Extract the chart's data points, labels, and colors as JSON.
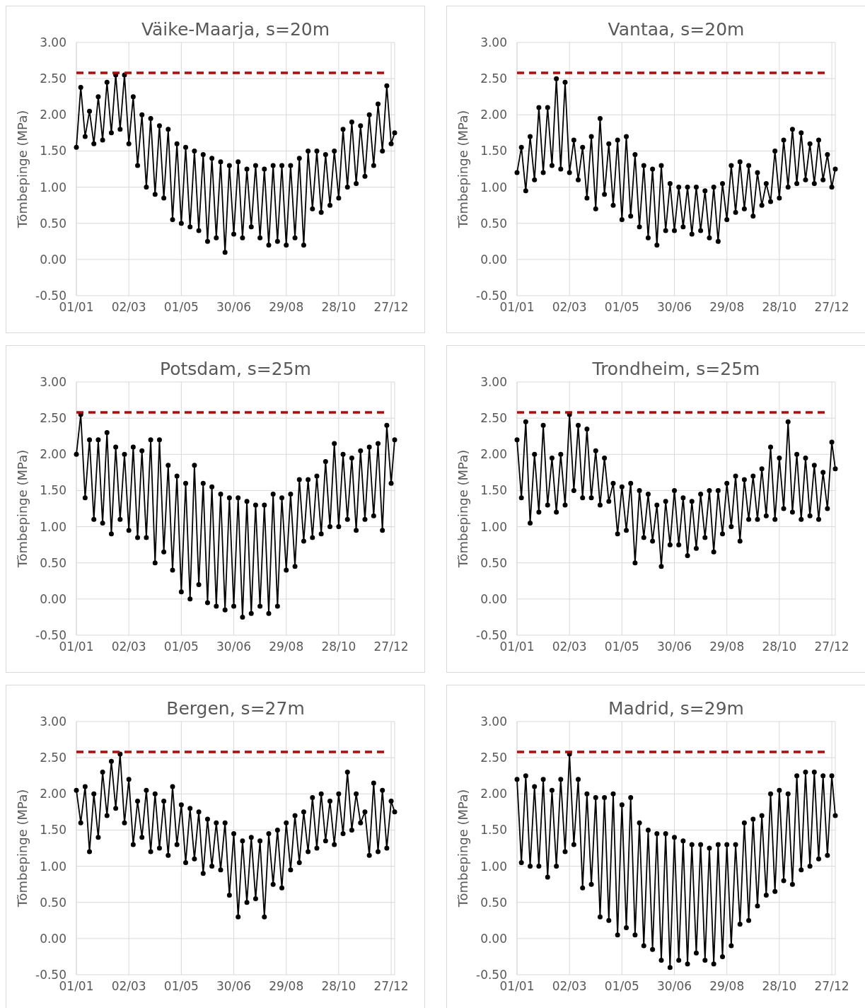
{
  "chart_data": [
    {
      "type": "line",
      "title": "Väike-Maarja, s=20m",
      "ylabel": "Tõmbepinge (MPa)",
      "grid": true,
      "marker": "circle",
      "line_style": "solid",
      "x": [
        "--01-01",
        "--01-06",
        "--01-11",
        "--01-16",
        "--01-21",
        "--01-26",
        "--01-31",
        "--02-05",
        "--02-10",
        "--02-15",
        "--02-20",
        "--02-25",
        "--03-02",
        "--03-07",
        "--03-12",
        "--03-17",
        "--03-22",
        "--03-27",
        "--04-01",
        "--04-06",
        "--04-11",
        "--04-16",
        "--04-21",
        "--04-26",
        "--05-01",
        "--05-06",
        "--05-11",
        "--05-16",
        "--05-21",
        "--05-26",
        "--05-31",
        "--06-05",
        "--06-10",
        "--06-15",
        "--06-20",
        "--06-25",
        "--06-30",
        "--07-05",
        "--07-10",
        "--07-15",
        "--07-20",
        "--07-25",
        "--07-30",
        "--08-04",
        "--08-09",
        "--08-14",
        "--08-19",
        "--08-24",
        "--08-29",
        "--09-03",
        "--09-08",
        "--09-13",
        "--09-18",
        "--09-23",
        "--09-28",
        "--10-03",
        "--10-08",
        "--10-13",
        "--10-18",
        "--10-23",
        "--10-28",
        "--11-02",
        "--11-07",
        "--11-12",
        "--11-17",
        "--11-22",
        "--11-27",
        "--12-02",
        "--12-07",
        "--12-12",
        "--12-17",
        "--12-22",
        "--12-27",
        "--12-31"
      ],
      "series": [
        {
          "color": "#000000",
          "values": [
            1.55,
            2.38,
            1.7,
            2.05,
            1.6,
            2.25,
            1.65,
            2.45,
            1.75,
            2.55,
            1.8,
            2.55,
            1.6,
            2.25,
            1.3,
            2.0,
            1.0,
            1.95,
            0.9,
            1.85,
            0.85,
            1.8,
            0.55,
            1.6,
            0.5,
            1.55,
            0.45,
            1.5,
            0.4,
            1.45,
            0.25,
            1.4,
            0.3,
            1.35,
            0.1,
            1.3,
            0.35,
            1.35,
            0.3,
            1.25,
            0.45,
            1.3,
            0.3,
            1.25,
            0.2,
            1.3,
            0.25,
            1.3,
            0.2,
            1.3,
            0.3,
            1.4,
            0.2,
            1.5,
            0.7,
            1.5,
            0.65,
            1.45,
            0.75,
            1.5,
            0.85,
            1.8,
            1.0,
            1.9,
            1.05,
            1.85,
            1.15,
            2.0,
            1.3,
            2.15,
            1.5,
            2.4,
            1.6,
            1.75
          ]
        }
      ],
      "xlim": [
        "--01-01",
        "--12-31"
      ],
      "xticks": [
        {
          "value": "--01-01",
          "label": "01/01"
        },
        {
          "value": "--03-02",
          "label": "02/03"
        },
        {
          "value": "--05-01",
          "label": "01/05"
        },
        {
          "value": "--06-30",
          "label": "30/06"
        },
        {
          "value": "--08-29",
          "label": "29/08"
        },
        {
          "value": "--10-28",
          "label": "28/10"
        },
        {
          "value": "--12-27",
          "label": "27/12"
        }
      ],
      "ylim": [
        -0.5,
        3
      ],
      "yticks": [
        {
          "value": -0.5,
          "label": "-0.50"
        },
        {
          "value": 0,
          "label": "0.00"
        },
        {
          "value": 0.5,
          "label": "0.50"
        },
        {
          "value": 1,
          "label": "1.00"
        },
        {
          "value": 1.5,
          "label": "1.50"
        },
        {
          "value": 2,
          "label": "2.00"
        },
        {
          "value": 2.5,
          "label": "2.50"
        },
        {
          "value": 3,
          "label": "3.00"
        }
      ],
      "ref_lines": [
        {
          "axis": "y",
          "value": 2.58,
          "color": "#c00000",
          "line_style": "dashed"
        }
      ]
    },
    {
      "type": "line",
      "title": "Vantaa, s=20m",
      "ylabel": "Tõmbepinge (MPa)",
      "grid": true,
      "marker": "circle",
      "line_style": "solid",
      "x": [
        "--01-01",
        "--01-06",
        "--01-11",
        "--01-16",
        "--01-21",
        "--01-26",
        "--01-31",
        "--02-05",
        "--02-10",
        "--02-15",
        "--02-20",
        "--02-25",
        "--03-02",
        "--03-07",
        "--03-12",
        "--03-17",
        "--03-22",
        "--03-27",
        "--04-01",
        "--04-06",
        "--04-11",
        "--04-16",
        "--04-21",
        "--04-26",
        "--05-01",
        "--05-06",
        "--05-11",
        "--05-16",
        "--05-21",
        "--05-26",
        "--05-31",
        "--06-05",
        "--06-10",
        "--06-15",
        "--06-20",
        "--06-25",
        "--06-30",
        "--07-05",
        "--07-10",
        "--07-15",
        "--07-20",
        "--07-25",
        "--07-30",
        "--08-04",
        "--08-09",
        "--08-14",
        "--08-19",
        "--08-24",
        "--08-29",
        "--09-03",
        "--09-08",
        "--09-13",
        "--09-18",
        "--09-23",
        "--09-28",
        "--10-03",
        "--10-08",
        "--10-13",
        "--10-18",
        "--10-23",
        "--10-28",
        "--11-02",
        "--11-07",
        "--11-12",
        "--11-17",
        "--11-22",
        "--11-27",
        "--12-02",
        "--12-07",
        "--12-12",
        "--12-17",
        "--12-22",
        "--12-27",
        "--12-31"
      ],
      "series": [
        {
          "color": "#000000",
          "values": [
            1.2,
            1.55,
            0.95,
            1.7,
            1.1,
            2.1,
            1.2,
            2.1,
            1.3,
            2.5,
            1.25,
            2.45,
            1.2,
            1.65,
            1.1,
            1.55,
            0.85,
            1.7,
            0.7,
            1.95,
            0.9,
            1.6,
            0.75,
            1.65,
            0.55,
            1.7,
            0.6,
            1.45,
            0.45,
            1.3,
            0.3,
            1.25,
            0.2,
            1.3,
            0.4,
            1.05,
            0.4,
            1.0,
            0.45,
            1.0,
            0.35,
            1.0,
            0.4,
            0.95,
            0.3,
            1.0,
            0.25,
            1.05,
            0.55,
            1.3,
            0.65,
            1.35,
            0.7,
            1.3,
            0.6,
            1.2,
            0.75,
            1.05,
            0.8,
            1.5,
            0.85,
            1.65,
            1.0,
            1.8,
            1.05,
            1.75,
            1.1,
            1.6,
            1.05,
            1.65,
            1.1,
            1.45,
            1.0,
            1.25
          ]
        }
      ],
      "xlim": [
        "--01-01",
        "--12-31"
      ],
      "xticks": [
        {
          "value": "--01-01",
          "label": "01/01"
        },
        {
          "value": "--03-02",
          "label": "02/03"
        },
        {
          "value": "--05-01",
          "label": "01/05"
        },
        {
          "value": "--06-30",
          "label": "30/06"
        },
        {
          "value": "--08-29",
          "label": "29/08"
        },
        {
          "value": "--10-28",
          "label": "28/10"
        },
        {
          "value": "--12-27",
          "label": "27/12"
        }
      ],
      "ylim": [
        -0.5,
        3
      ],
      "yticks": [
        {
          "value": -0.5,
          "label": "-0.50"
        },
        {
          "value": 0,
          "label": "0.00"
        },
        {
          "value": 0.5,
          "label": "0.50"
        },
        {
          "value": 1,
          "label": "1.00"
        },
        {
          "value": 1.5,
          "label": "1.50"
        },
        {
          "value": 2,
          "label": "2.00"
        },
        {
          "value": 2.5,
          "label": "2.50"
        },
        {
          "value": 3,
          "label": "3.00"
        }
      ],
      "ref_lines": [
        {
          "axis": "y",
          "value": 2.58,
          "color": "#c00000",
          "line_style": "dashed"
        }
      ]
    },
    {
      "type": "line",
      "title": "Potsdam, s=25m",
      "ylabel": "Tõmbepinge (MPa)",
      "grid": true,
      "marker": "circle",
      "line_style": "solid",
      "x": [
        "--01-01",
        "--01-06",
        "--01-11",
        "--01-16",
        "--01-21",
        "--01-26",
        "--01-31",
        "--02-05",
        "--02-10",
        "--02-15",
        "--02-20",
        "--02-25",
        "--03-02",
        "--03-07",
        "--03-12",
        "--03-17",
        "--03-22",
        "--03-27",
        "--04-01",
        "--04-06",
        "--04-11",
        "--04-16",
        "--04-21",
        "--04-26",
        "--05-01",
        "--05-06",
        "--05-11",
        "--05-16",
        "--05-21",
        "--05-26",
        "--05-31",
        "--06-05",
        "--06-10",
        "--06-15",
        "--06-20",
        "--06-25",
        "--06-30",
        "--07-05",
        "--07-10",
        "--07-15",
        "--07-20",
        "--07-25",
        "--07-30",
        "--08-04",
        "--08-09",
        "--08-14",
        "--08-19",
        "--08-24",
        "--08-29",
        "--09-03",
        "--09-08",
        "--09-13",
        "--09-18",
        "--09-23",
        "--09-28",
        "--10-03",
        "--10-08",
        "--10-13",
        "--10-18",
        "--10-23",
        "--10-28",
        "--11-02",
        "--11-07",
        "--11-12",
        "--11-17",
        "--11-22",
        "--11-27",
        "--12-02",
        "--12-07",
        "--12-12",
        "--12-17",
        "--12-22",
        "--12-27",
        "--12-31"
      ],
      "series": [
        {
          "color": "#000000",
          "values": [
            2.0,
            2.55,
            1.4,
            2.2,
            1.1,
            2.2,
            1.05,
            2.3,
            0.9,
            2.1,
            1.1,
            2.0,
            0.95,
            2.1,
            0.85,
            2.05,
            0.85,
            2.2,
            0.5,
            2.2,
            0.65,
            1.85,
            0.4,
            1.7,
            0.1,
            1.6,
            0.0,
            1.85,
            0.2,
            1.6,
            -0.05,
            1.55,
            -0.1,
            1.45,
            -0.15,
            1.4,
            -0.1,
            1.4,
            -0.25,
            1.35,
            -0.2,
            1.3,
            -0.1,
            1.3,
            -0.2,
            1.45,
            -0.1,
            1.4,
            0.4,
            1.45,
            0.45,
            1.65,
            0.8,
            1.65,
            0.85,
            1.7,
            0.9,
            1.9,
            1.0,
            2.15,
            1.0,
            2.0,
            1.1,
            1.95,
            0.95,
            2.05,
            1.1,
            2.1,
            1.15,
            2.15,
            0.95,
            2.4,
            1.6,
            2.2
          ]
        }
      ],
      "xlim": [
        "--01-01",
        "--12-31"
      ],
      "xticks": [
        {
          "value": "--01-01",
          "label": "01/01"
        },
        {
          "value": "--03-02",
          "label": "02/03"
        },
        {
          "value": "--05-01",
          "label": "01/05"
        },
        {
          "value": "--06-30",
          "label": "30/06"
        },
        {
          "value": "--08-29",
          "label": "29/08"
        },
        {
          "value": "--10-28",
          "label": "28/10"
        },
        {
          "value": "--12-27",
          "label": "27/12"
        }
      ],
      "ylim": [
        -0.5,
        3
      ],
      "yticks": [
        {
          "value": -0.5,
          "label": "-0.50"
        },
        {
          "value": 0,
          "label": "0.00"
        },
        {
          "value": 0.5,
          "label": "0.50"
        },
        {
          "value": 1,
          "label": "1.00"
        },
        {
          "value": 1.5,
          "label": "1.50"
        },
        {
          "value": 2,
          "label": "2.00"
        },
        {
          "value": 2.5,
          "label": "2.50"
        },
        {
          "value": 3,
          "label": "3.00"
        }
      ],
      "ref_lines": [
        {
          "axis": "y",
          "value": 2.58,
          "color": "#c00000",
          "line_style": "dashed"
        }
      ]
    },
    {
      "type": "line",
      "title": "Trondheim, s=25m",
      "ylabel": "Tõmbepinge (MPa)",
      "grid": true,
      "marker": "circle",
      "line_style": "solid",
      "x": [
        "--01-01",
        "--01-06",
        "--01-11",
        "--01-16",
        "--01-21",
        "--01-26",
        "--01-31",
        "--02-05",
        "--02-10",
        "--02-15",
        "--02-20",
        "--02-25",
        "--03-02",
        "--03-07",
        "--03-12",
        "--03-17",
        "--03-22",
        "--03-27",
        "--04-01",
        "--04-06",
        "--04-11",
        "--04-16",
        "--04-21",
        "--04-26",
        "--05-01",
        "--05-06",
        "--05-11",
        "--05-16",
        "--05-21",
        "--05-26",
        "--05-31",
        "--06-05",
        "--06-10",
        "--06-15",
        "--06-20",
        "--06-25",
        "--06-30",
        "--07-05",
        "--07-10",
        "--07-15",
        "--07-20",
        "--07-25",
        "--07-30",
        "--08-04",
        "--08-09",
        "--08-14",
        "--08-19",
        "--08-24",
        "--08-29",
        "--09-03",
        "--09-08",
        "--09-13",
        "--09-18",
        "--09-23",
        "--09-28",
        "--10-03",
        "--10-08",
        "--10-13",
        "--10-18",
        "--10-23",
        "--10-28",
        "--11-02",
        "--11-07",
        "--11-12",
        "--11-17",
        "--11-22",
        "--11-27",
        "--12-02",
        "--12-07",
        "--12-12",
        "--12-17",
        "--12-22",
        "--12-27",
        "--12-31"
      ],
      "series": [
        {
          "color": "#000000",
          "values": [
            2.2,
            1.4,
            2.45,
            1.05,
            2.0,
            1.2,
            2.4,
            1.3,
            1.95,
            1.2,
            2.0,
            1.3,
            2.55,
            1.5,
            2.4,
            1.4,
            2.35,
            1.4,
            2.05,
            1.3,
            1.95,
            1.35,
            1.6,
            0.9,
            1.55,
            0.95,
            1.6,
            0.5,
            1.5,
            0.85,
            1.45,
            0.8,
            1.3,
            0.45,
            1.35,
            0.75,
            1.5,
            0.75,
            1.4,
            0.6,
            1.35,
            0.7,
            1.45,
            0.85,
            1.5,
            0.65,
            1.5,
            0.9,
            1.6,
            1.0,
            1.7,
            0.8,
            1.65,
            1.1,
            1.7,
            1.1,
            1.8,
            1.15,
            2.1,
            1.1,
            1.95,
            1.25,
            2.45,
            1.2,
            2.0,
            1.1,
            1.95,
            1.15,
            1.85,
            1.1,
            1.75,
            1.25,
            2.17,
            1.8
          ]
        }
      ],
      "xlim": [
        "--01-01",
        "--12-31"
      ],
      "xticks": [
        {
          "value": "--01-01",
          "label": "01/01"
        },
        {
          "value": "--03-02",
          "label": "02/03"
        },
        {
          "value": "--05-01",
          "label": "01/05"
        },
        {
          "value": "--06-30",
          "label": "30/06"
        },
        {
          "value": "--08-29",
          "label": "29/08"
        },
        {
          "value": "--10-28",
          "label": "28/10"
        },
        {
          "value": "--12-27",
          "label": "27/12"
        }
      ],
      "ylim": [
        -0.5,
        3
      ],
      "yticks": [
        {
          "value": -0.5,
          "label": "-0.50"
        },
        {
          "value": 0,
          "label": "0.00"
        },
        {
          "value": 0.5,
          "label": "0.50"
        },
        {
          "value": 1,
          "label": "1.00"
        },
        {
          "value": 1.5,
          "label": "1.50"
        },
        {
          "value": 2,
          "label": "2.00"
        },
        {
          "value": 2.5,
          "label": "2.50"
        },
        {
          "value": 3,
          "label": "3.00"
        }
      ],
      "ref_lines": [
        {
          "axis": "y",
          "value": 2.58,
          "color": "#c00000",
          "line_style": "dashed"
        }
      ]
    },
    {
      "type": "line",
      "title": "Bergen, s=27m",
      "ylabel": "Tõmbepinge (MPa)",
      "grid": true,
      "marker": "circle",
      "line_style": "solid",
      "x": [
        "--01-01",
        "--01-06",
        "--01-11",
        "--01-16",
        "--01-21",
        "--01-26",
        "--01-31",
        "--02-05",
        "--02-10",
        "--02-15",
        "--02-20",
        "--02-25",
        "--03-02",
        "--03-07",
        "--03-12",
        "--03-17",
        "--03-22",
        "--03-27",
        "--04-01",
        "--04-06",
        "--04-11",
        "--04-16",
        "--04-21",
        "--04-26",
        "--05-01",
        "--05-06",
        "--05-11",
        "--05-16",
        "--05-21",
        "--05-26",
        "--05-31",
        "--06-05",
        "--06-10",
        "--06-15",
        "--06-20",
        "--06-25",
        "--06-30",
        "--07-05",
        "--07-10",
        "--07-15",
        "--07-20",
        "--07-25",
        "--07-30",
        "--08-04",
        "--08-09",
        "--08-14",
        "--08-19",
        "--08-24",
        "--08-29",
        "--09-03",
        "--09-08",
        "--09-13",
        "--09-18",
        "--09-23",
        "--09-28",
        "--10-03",
        "--10-08",
        "--10-13",
        "--10-18",
        "--10-23",
        "--10-28",
        "--11-02",
        "--11-07",
        "--11-12",
        "--11-17",
        "--11-22",
        "--11-27",
        "--12-02",
        "--12-07",
        "--12-12",
        "--12-17",
        "--12-22",
        "--12-27",
        "--12-31"
      ],
      "series": [
        {
          "color": "#000000",
          "values": [
            2.05,
            1.6,
            2.1,
            1.2,
            2.0,
            1.4,
            2.3,
            1.7,
            2.45,
            1.8,
            2.55,
            1.6,
            2.2,
            1.3,
            1.9,
            1.4,
            2.05,
            1.2,
            2.0,
            1.25,
            1.9,
            1.15,
            2.1,
            1.3,
            1.85,
            1.05,
            1.8,
            1.1,
            1.75,
            0.9,
            1.65,
            1.0,
            1.6,
            0.95,
            1.6,
            0.6,
            1.45,
            0.3,
            1.35,
            0.5,
            1.4,
            0.55,
            1.35,
            0.3,
            1.45,
            0.75,
            1.5,
            0.7,
            1.6,
            0.95,
            1.7,
            1.05,
            1.75,
            1.2,
            1.95,
            1.25,
            2.0,
            1.35,
            1.9,
            1.3,
            2.0,
            1.45,
            2.3,
            1.5,
            2.0,
            1.6,
            1.75,
            1.15,
            2.15,
            1.2,
            2.05,
            1.25,
            1.9,
            1.75
          ]
        }
      ],
      "xlim": [
        "--01-01",
        "--12-31"
      ],
      "xticks": [
        {
          "value": "--01-01",
          "label": "01/01"
        },
        {
          "value": "--03-02",
          "label": "02/03"
        },
        {
          "value": "--05-01",
          "label": "01/05"
        },
        {
          "value": "--06-30",
          "label": "30/06"
        },
        {
          "value": "--08-29",
          "label": "29/08"
        },
        {
          "value": "--10-28",
          "label": "28/10"
        },
        {
          "value": "--12-27",
          "label": "27/12"
        }
      ],
      "ylim": [
        -0.5,
        3
      ],
      "yticks": [
        {
          "value": -0.5,
          "label": "-0.50"
        },
        {
          "value": 0,
          "label": "0.00"
        },
        {
          "value": 0.5,
          "label": "0.50"
        },
        {
          "value": 1,
          "label": "1.00"
        },
        {
          "value": 1.5,
          "label": "1.50"
        },
        {
          "value": 2,
          "label": "2.00"
        },
        {
          "value": 2.5,
          "label": "2.50"
        },
        {
          "value": 3,
          "label": "3.00"
        }
      ],
      "ref_lines": [
        {
          "axis": "y",
          "value": 2.58,
          "color": "#c00000",
          "line_style": "dashed"
        }
      ]
    },
    {
      "type": "line",
      "title": "Madrid, s=29m",
      "ylabel": "Tõmbepinge (MPa)",
      "grid": true,
      "marker": "circle",
      "line_style": "solid",
      "x": [
        "--01-01",
        "--01-06",
        "--01-11",
        "--01-16",
        "--01-21",
        "--01-26",
        "--01-31",
        "--02-05",
        "--02-10",
        "--02-15",
        "--02-20",
        "--02-25",
        "--03-02",
        "--03-07",
        "--03-12",
        "--03-17",
        "--03-22",
        "--03-27",
        "--04-01",
        "--04-06",
        "--04-11",
        "--04-16",
        "--04-21",
        "--04-26",
        "--05-01",
        "--05-06",
        "--05-11",
        "--05-16",
        "--05-21",
        "--05-26",
        "--05-31",
        "--06-05",
        "--06-10",
        "--06-15",
        "--06-20",
        "--06-25",
        "--06-30",
        "--07-05",
        "--07-10",
        "--07-15",
        "--07-20",
        "--07-25",
        "--07-30",
        "--08-04",
        "--08-09",
        "--08-14",
        "--08-19",
        "--08-24",
        "--08-29",
        "--09-03",
        "--09-08",
        "--09-13",
        "--09-18",
        "--09-23",
        "--09-28",
        "--10-03",
        "--10-08",
        "--10-13",
        "--10-18",
        "--10-23",
        "--10-28",
        "--11-02",
        "--11-07",
        "--11-12",
        "--11-17",
        "--11-22",
        "--11-27",
        "--12-02",
        "--12-07",
        "--12-12",
        "--12-17",
        "--12-22",
        "--12-27",
        "--12-31"
      ],
      "series": [
        {
          "color": "#000000",
          "values": [
            2.2,
            1.05,
            2.25,
            1.0,
            2.1,
            1.0,
            2.2,
            0.85,
            2.05,
            1.0,
            2.2,
            1.2,
            2.55,
            1.3,
            2.2,
            0.7,
            2.0,
            0.75,
            1.95,
            0.3,
            1.95,
            0.25,
            2.0,
            0.05,
            1.85,
            0.15,
            1.95,
            0.05,
            1.6,
            -0.1,
            1.5,
            -0.15,
            1.45,
            -0.3,
            1.45,
            -0.4,
            1.4,
            -0.3,
            1.35,
            -0.35,
            1.3,
            -0.2,
            1.3,
            -0.3,
            1.25,
            -0.35,
            1.3,
            -0.25,
            1.3,
            -0.1,
            1.3,
            0.2,
            1.6,
            0.25,
            1.65,
            0.45,
            1.7,
            0.6,
            2.0,
            0.65,
            2.05,
            0.8,
            2.0,
            0.75,
            2.25,
            0.95,
            2.3,
            1.0,
            2.3,
            1.1,
            2.25,
            1.15,
            2.25,
            1.7
          ]
        }
      ],
      "xlim": [
        "--01-01",
        "--12-31"
      ],
      "xticks": [
        {
          "value": "--01-01",
          "label": "01/01"
        },
        {
          "value": "--03-02",
          "label": "02/03"
        },
        {
          "value": "--05-01",
          "label": "01/05"
        },
        {
          "value": "--06-30",
          "label": "30/06"
        },
        {
          "value": "--08-29",
          "label": "29/08"
        },
        {
          "value": "--10-28",
          "label": "28/10"
        },
        {
          "value": "--12-27",
          "label": "27/12"
        }
      ],
      "ylim": [
        -0.5,
        3
      ],
      "yticks": [
        {
          "value": -0.5,
          "label": "-0.50"
        },
        {
          "value": 0,
          "label": "0.00"
        },
        {
          "value": 0.5,
          "label": "0.50"
        },
        {
          "value": 1,
          "label": "1.00"
        },
        {
          "value": 1.5,
          "label": "1.50"
        },
        {
          "value": 2,
          "label": "2.00"
        },
        {
          "value": 2.5,
          "label": "2.50"
        },
        {
          "value": 3,
          "label": "3.00"
        }
      ],
      "ref_lines": [
        {
          "axis": "y",
          "value": 2.58,
          "color": "#c00000",
          "line_style": "dashed"
        }
      ]
    }
  ]
}
